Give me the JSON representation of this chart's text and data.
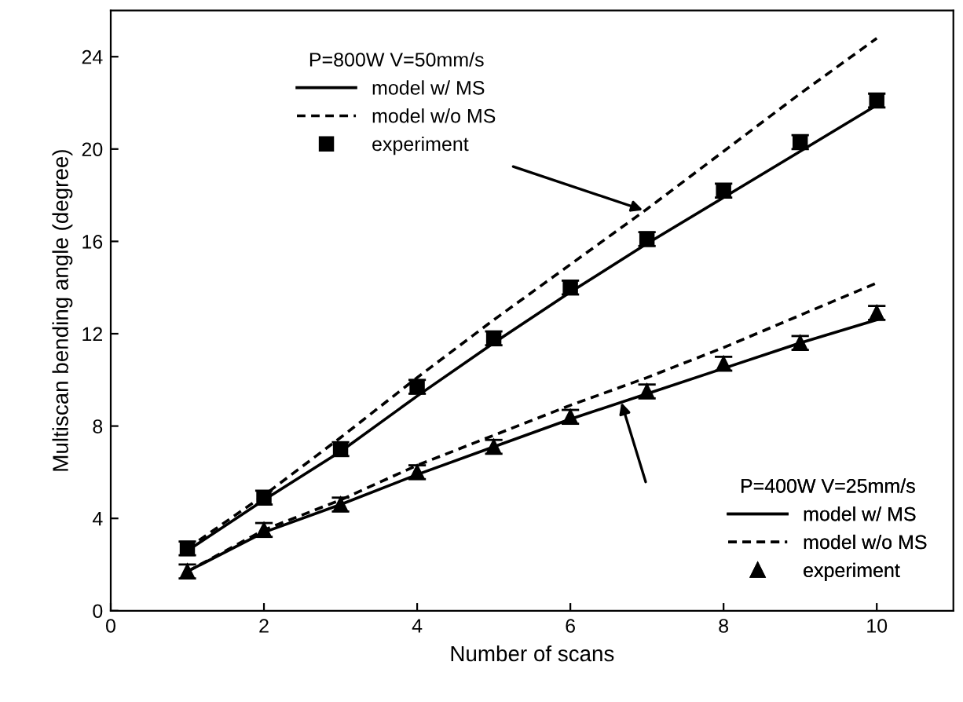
{
  "chart_data": {
    "type": "line",
    "xlabel": "Number of scans",
    "ylabel": "Multiscan bending angle (degree)",
    "xlim": [
      0,
      11
    ],
    "xticks": [
      0,
      2,
      4,
      6,
      8,
      10
    ],
    "ylim": [
      0,
      26
    ],
    "yticks": [
      0,
      4,
      8,
      12,
      16,
      20,
      24
    ],
    "grid": false,
    "legend": [
      "top left",
      "bottom right"
    ],
    "annotations": [
      "P=800W V=50mm/s",
      "P=400W V=25mm/s"
    ],
    "x": [
      1,
      2,
      3,
      4,
      5,
      6,
      7,
      8,
      9,
      10
    ],
    "series": [
      {
        "name": "model w/ MS",
        "line_style": "solid",
        "marker": "none",
        "color": "#000000",
        "values": [
          2.6,
          4.8,
          6.9,
          9.3,
          11.6,
          13.8,
          15.9,
          17.9,
          19.9,
          21.9
        ]
      },
      {
        "name": "model w/o MS",
        "line_style": "dashed",
        "marker": "none",
        "color": "#000000",
        "values": [
          2.7,
          5.0,
          7.5,
          10.1,
          12.6,
          15.0,
          17.4,
          19.9,
          22.4,
          24.8
        ]
      },
      {
        "name": "experiment",
        "type": "scatter",
        "marker": "square",
        "color": "#000000",
        "values": [
          2.7,
          4.9,
          7.0,
          9.7,
          11.8,
          14.0,
          16.1,
          18.2,
          20.3,
          22.1
        ],
        "errors": [
          0.3,
          0.3,
          0.3,
          0.3,
          0.3,
          0.3,
          0.3,
          0.3,
          0.3,
          0.3
        ]
      },
      {
        "name": "model w/ MS",
        "line_style": "solid",
        "marker": "none",
        "color": "#000000",
        "values": [
          1.7,
          3.4,
          4.6,
          5.9,
          7.1,
          8.3,
          9.4,
          10.5,
          11.6,
          12.6
        ]
      },
      {
        "name": "model w/o MS",
        "line_style": "dashed",
        "marker": "none",
        "color": "#000000",
        "values": [
          1.7,
          3.5,
          4.8,
          6.3,
          7.6,
          8.9,
          10.1,
          11.4,
          12.8,
          14.2
        ]
      },
      {
        "name": "experiment",
        "type": "scatter",
        "marker": "triangle",
        "color": "#000000",
        "values": [
          1.7,
          3.5,
          4.6,
          6.0,
          7.1,
          8.4,
          9.5,
          10.7,
          11.6,
          12.9
        ],
        "errors": [
          0.3,
          0.3,
          0.3,
          0.3,
          0.3,
          0.3,
          0.3,
          0.3,
          0.3,
          0.3
        ]
      }
    ]
  }
}
